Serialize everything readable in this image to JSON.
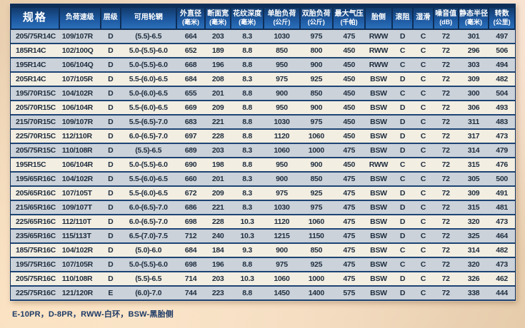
{
  "table": {
    "columns": [
      {
        "label": "规格",
        "sub": ""
      },
      {
        "label": "负荷速级",
        "sub": ""
      },
      {
        "label": "层级",
        "sub": ""
      },
      {
        "label": "可用轮辋",
        "sub": ""
      },
      {
        "label": "外直径",
        "sub": "(毫米)"
      },
      {
        "label": "断面宽",
        "sub": "(毫米)"
      },
      {
        "label": "花纹深度",
        "sub": "(毫米)"
      },
      {
        "label": "单胎负荷",
        "sub": "(公斤)"
      },
      {
        "label": "双胎负荷",
        "sub": "(公斤)"
      },
      {
        "label": "最大气压",
        "sub": "(千帕)"
      },
      {
        "label": "胎侧",
        "sub": ""
      },
      {
        "label": "滚阻",
        "sub": ""
      },
      {
        "label": "湿滑",
        "sub": ""
      },
      {
        "label": "噪音值",
        "sub": "(dB)"
      },
      {
        "label": "静态半径",
        "sub": "(毫米)"
      },
      {
        "label": "转数",
        "sub": "(公里)"
      }
    ],
    "rows": [
      [
        "205/75R14C",
        "109/107R",
        "D",
        "(5.5)-6.5",
        "664",
        "203",
        "8.3",
        "1030",
        "975",
        "475",
        "RWW",
        "D",
        "C",
        "72",
        "301",
        "497"
      ],
      [
        "185R14C",
        "102/100Q",
        "D",
        "5.0-(5.5)-6.0",
        "652",
        "189",
        "8.8",
        "850",
        "800",
        "450",
        "RWW",
        "C",
        "C",
        "72",
        "296",
        "506"
      ],
      [
        "195R14C",
        "106/104Q",
        "D",
        "5.0-(5.5)-6.0",
        "668",
        "196",
        "8.8",
        "950",
        "900",
        "450",
        "RWW",
        "C",
        "C",
        "72",
        "303",
        "494"
      ],
      [
        "205R14C",
        "107/105R",
        "D",
        "5.5-(6.0)-6.5",
        "684",
        "208",
        "8.3",
        "975",
        "925",
        "450",
        "BSW",
        "D",
        "C",
        "72",
        "309",
        "482"
      ],
      [
        "195/70R15C",
        "104/102R",
        "D",
        "5.0-(6.0)-6.5",
        "655",
        "201",
        "8.8",
        "900",
        "850",
        "450",
        "BSW",
        "C",
        "C",
        "72",
        "300",
        "504"
      ],
      [
        "205/70R15C",
        "106/104R",
        "D",
        "5.5-(6.0)-6.5",
        "669",
        "209",
        "8.8",
        "950",
        "900",
        "450",
        "BSW",
        "D",
        "C",
        "72",
        "306",
        "493"
      ],
      [
        "215/70R15C",
        "109/107R",
        "D",
        "5.5-(6.5)-7.0",
        "683",
        "221",
        "8.8",
        "1030",
        "975",
        "450",
        "BSW",
        "D",
        "C",
        "72",
        "311",
        "483"
      ],
      [
        "225/70R15C",
        "112/110R",
        "D",
        "6.0-(6.5)-7.0",
        "697",
        "228",
        "8.8",
        "1120",
        "1060",
        "450",
        "BSW",
        "D",
        "C",
        "72",
        "317",
        "473"
      ],
      [
        "205/75R15C",
        "110/108R",
        "D",
        "(5.5)-6.5",
        "689",
        "203",
        "8.3",
        "1060",
        "1000",
        "475",
        "BSW",
        "D",
        "C",
        "72",
        "314",
        "479"
      ],
      [
        "195R15C",
        "106/104R",
        "D",
        "5.0-(5.5)-6.0",
        "690",
        "198",
        "8.8",
        "950",
        "900",
        "450",
        "RWW",
        "C",
        "C",
        "72",
        "315",
        "476"
      ],
      [
        "195/65R16C",
        "104/102R",
        "D",
        "5.5-(6.0)-6.5",
        "660",
        "201",
        "8.3",
        "900",
        "850",
        "475",
        "BSW",
        "C",
        "C",
        "72",
        "305",
        "500"
      ],
      [
        "205/65R16C",
        "107/105T",
        "D",
        "5.5-(6.0)-6.5",
        "672",
        "209",
        "8.3",
        "975",
        "925",
        "475",
        "BSW",
        "D",
        "C",
        "72",
        "309",
        "491"
      ],
      [
        "215/65R16C",
        "109/107T",
        "D",
        "6.0-(6.5)-7.0",
        "686",
        "221",
        "8.3",
        "1030",
        "975",
        "475",
        "BSW",
        "D",
        "C",
        "72",
        "315",
        "481"
      ],
      [
        "225/65R16C",
        "112/110T",
        "D",
        "6.0-(6.5)-7.0",
        "698",
        "228",
        "10.3",
        "1120",
        "1060",
        "475",
        "BSW",
        "D",
        "C",
        "72",
        "320",
        "473"
      ],
      [
        "235/65R16C",
        "115/113T",
        "D",
        "6.5-(7.0)-7.5",
        "712",
        "240",
        "10.3",
        "1215",
        "1150",
        "475",
        "BSW",
        "D",
        "C",
        "72",
        "325",
        "464"
      ],
      [
        "185/75R16C",
        "104/102R",
        "D",
        "(5.0)-6.0",
        "684",
        "184",
        "9.3",
        "900",
        "850",
        "475",
        "BSW",
        "C",
        "C",
        "72",
        "314",
        "482"
      ],
      [
        "195/75R16C",
        "107/105R",
        "D",
        "5.0-(5.5)-6.0",
        "698",
        "196",
        "8.8",
        "975",
        "925",
        "475",
        "BSW",
        "C",
        "C",
        "72",
        "320",
        "473"
      ],
      [
        "205/75R16C",
        "110/108R",
        "D",
        "(5.5)-6.5",
        "714",
        "203",
        "10.3",
        "1060",
        "1000",
        "475",
        "BSW",
        "D",
        "C",
        "72",
        "326",
        "462"
      ],
      [
        "225/75R16C",
        "121/120R",
        "E",
        "(6.0)-7.0",
        "744",
        "223",
        "8.8",
        "1450",
        "1400",
        "575",
        "BSW",
        "D",
        "C",
        "72",
        "338",
        "444"
      ]
    ]
  },
  "footnote": "E-10PR，D-8PR，RWW-白环，BSW-黑胎侧",
  "colors": {
    "header_navy": "#0e2e57",
    "header_blue": "#1d58a0",
    "row_separator": "#1d4474",
    "row_gray": "#cbd2da",
    "row_cream": "#f3eee2",
    "cell_text": "#1e2d3e",
    "page_background": "#f0d8be",
    "footnote_text": "#1c3a66"
  }
}
